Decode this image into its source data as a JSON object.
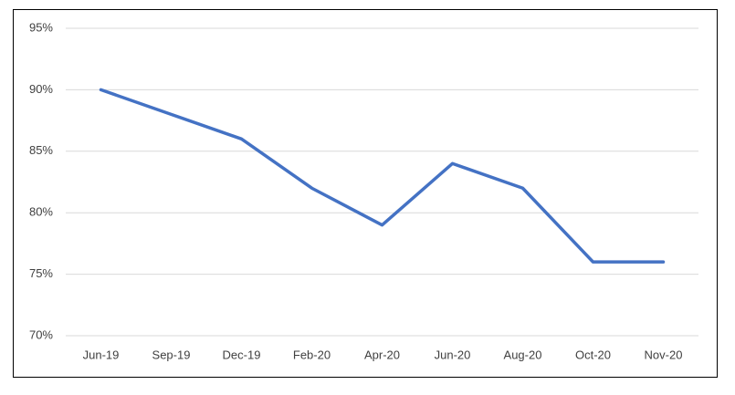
{
  "chart_data": {
    "type": "line",
    "categories": [
      "Jun-19",
      "Sep-19",
      "Dec-19",
      "Feb-20",
      "Apr-20",
      "Jun-20",
      "Aug-20",
      "Oct-20",
      "Nov-20"
    ],
    "series": [
      {
        "color": "#4472c4",
        "values": [
          90,
          88,
          86,
          82,
          79,
          84,
          82,
          76,
          76
        ]
      }
    ],
    "ylim": [
      70,
      95
    ],
    "yticks": [
      {
        "value": 70,
        "label": "70%"
      },
      {
        "value": 75,
        "label": "75%"
      },
      {
        "value": 80,
        "label": "80%"
      },
      {
        "value": 85,
        "label": "85%"
      },
      {
        "value": 90,
        "label": "90%"
      },
      {
        "value": 95,
        "label": "95%"
      }
    ],
    "grid": true
  }
}
